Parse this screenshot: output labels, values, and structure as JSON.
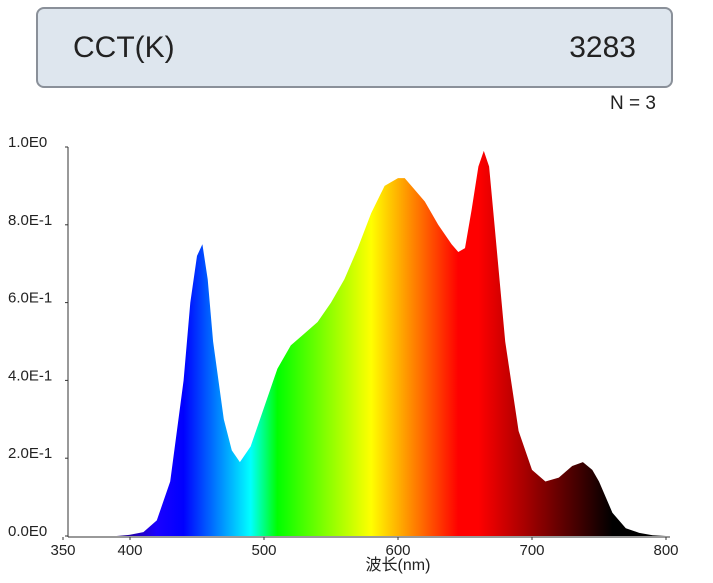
{
  "chart_data": {
    "type": "area",
    "header_label": "CCT(K)",
    "header_value": 3283,
    "annotation": "N = 3",
    "xlabel": "波长(nm)",
    "x": [
      380,
      390,
      400,
      410,
      420,
      430,
      440,
      445,
      450,
      454,
      458,
      462,
      470,
      476,
      482,
      490,
      500,
      510,
      520,
      530,
      540,
      550,
      560,
      570,
      580,
      590,
      600,
      605,
      610,
      620,
      630,
      640,
      645,
      650,
      655,
      660,
      664,
      668,
      672,
      680,
      690,
      700,
      710,
      720,
      730,
      738,
      745,
      750,
      760,
      770,
      780,
      790,
      800
    ],
    "values": [
      0,
      0,
      0.003,
      0.01,
      0.04,
      0.14,
      0.4,
      0.6,
      0.72,
      0.75,
      0.66,
      0.5,
      0.3,
      0.22,
      0.19,
      0.23,
      0.33,
      0.43,
      0.49,
      0.52,
      0.55,
      0.6,
      0.66,
      0.74,
      0.83,
      0.9,
      0.92,
      0.92,
      0.9,
      0.86,
      0.8,
      0.75,
      0.73,
      0.74,
      0.84,
      0.95,
      0.99,
      0.95,
      0.8,
      0.5,
      0.27,
      0.17,
      0.14,
      0.15,
      0.18,
      0.19,
      0.17,
      0.14,
      0.06,
      0.02,
      0.008,
      0.002,
      0
    ],
    "xlim": [
      350,
      800
    ],
    "ylim": [
      0,
      1
    ],
    "xticks": [
      350,
      400,
      500,
      600,
      700,
      800
    ],
    "yticks": [
      {
        "value": 0,
        "label": "0.0E0"
      },
      {
        "value": 0.2,
        "label": "2.0E-1"
      },
      {
        "value": 0.4,
        "label": "4.0E-1"
      },
      {
        "value": 0.6,
        "label": "6.0E-1"
      },
      {
        "value": 0.8,
        "label": "8.0E-1"
      },
      {
        "value": 1,
        "label": "1.0E0"
      }
    ]
  }
}
